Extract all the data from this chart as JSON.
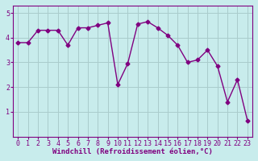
{
  "x": [
    0,
    1,
    2,
    3,
    4,
    5,
    6,
    7,
    8,
    9,
    10,
    11,
    12,
    13,
    14,
    15,
    16,
    17,
    18,
    19,
    20,
    21,
    22,
    23
  ],
  "y": [
    3.8,
    3.8,
    4.3,
    4.3,
    4.3,
    3.7,
    4.4,
    4.4,
    4.5,
    4.6,
    2.1,
    2.95,
    4.55,
    4.65,
    4.4,
    4.1,
    3.7,
    3.0,
    3.1,
    3.5,
    2.85,
    1.4,
    2.3,
    0.65
  ],
  "line_color": "#800080",
  "marker": "D",
  "marker_size": 2.5,
  "bg_color": "#c8ecec",
  "grid_color": "#aacccc",
  "xlabel": "Windchill (Refroidissement éolien,°C)",
  "ylabel": "",
  "ylim": [
    0,
    5.3
  ],
  "yticks": [
    1,
    2,
    3,
    4,
    5
  ],
  "ytick_labels": [
    "1",
    "2",
    "3",
    "4",
    "5"
  ],
  "xticks": [
    0,
    1,
    2,
    3,
    4,
    5,
    6,
    7,
    8,
    9,
    10,
    11,
    12,
    13,
    14,
    15,
    16,
    17,
    18,
    19,
    20,
    21,
    22,
    23
  ],
  "xlabel_fontsize": 6.5,
  "tick_fontsize": 6,
  "line_width": 1.0
}
